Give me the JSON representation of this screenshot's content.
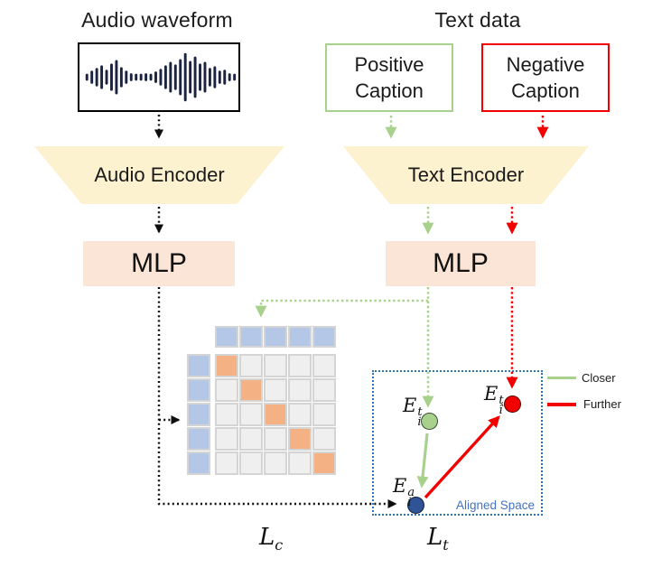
{
  "titles": {
    "audio_input": "Audio waveform",
    "text_input": "Text data"
  },
  "caption_boxes": {
    "positive": "Positive Caption",
    "negative": "Negative Caption"
  },
  "encoders": {
    "audio": "Audio Encoder",
    "text": "Text Encoder"
  },
  "mlp": {
    "audio": "MLP",
    "text": "MLP"
  },
  "matrix": {
    "rows": 5,
    "cols": 5,
    "diagonal_highlighted": true
  },
  "aligned_space": {
    "label": "Aligned Space",
    "embeddings": {
      "positive_text": {
        "base": "E",
        "sup": "t",
        "sub": "i"
      },
      "negative_text": {
        "base": "E",
        "sup": "t",
        "sub": "î"
      },
      "audio": {
        "base": "E",
        "sup": "a",
        "sub": "i"
      }
    }
  },
  "legend": {
    "closer": "Closer",
    "further": "Further"
  },
  "losses": {
    "contrastive": {
      "base": "L",
      "sub": "c"
    },
    "triplet": {
      "base": "L",
      "sub": "t"
    }
  },
  "colors": {
    "green": "#a9d18e",
    "red": "#f20000",
    "cream": "#fdf2d0",
    "peach": "#fbe5d6",
    "cellblue": "#b4c7e7",
    "cellorange": "#f4b183",
    "cellgray": "#efefef",
    "cellborder": "#d4d4d4",
    "navy": "#1a2340",
    "pointblue": "#2e5496",
    "alignedborder": "#2e75b6",
    "alignedtext": "#4472c4"
  },
  "waveform_bars": [
    5,
    12,
    18,
    24,
    14,
    28,
    36,
    20,
    12,
    6,
    5,
    5,
    6,
    5,
    10,
    16,
    24,
    32,
    26,
    38,
    52,
    34,
    44,
    28,
    32,
    18,
    22,
    12,
    14,
    6,
    5
  ]
}
